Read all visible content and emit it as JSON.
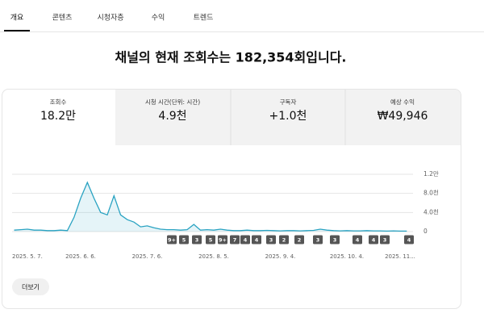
{
  "tabs": [
    "개요",
    "콘텐츠",
    "시청자층",
    "수익",
    "트렌드"
  ],
  "headline": "채널의 현재 조회수는 182,354회입니다.",
  "metrics": [
    {
      "label": "조회수",
      "value": "18.2만"
    },
    {
      "label": "시청 시간(단위: 시간)",
      "value": "4.9천"
    },
    {
      "label": "구독자",
      "value": "+1.0천"
    },
    {
      "label": "예상 수익",
      "value": "₩49,946"
    }
  ],
  "chart_data": {
    "type": "line",
    "color": "#2aa3c2",
    "categories": [
      "2025. 5. 7.",
      null,
      null,
      null,
      null,
      null,
      null,
      null,
      null,
      null,
      "2025. 6. 6.",
      null,
      null,
      null,
      null,
      null,
      null,
      null,
      null,
      null,
      "2025. 7. 6.",
      null,
      null,
      null,
      null,
      null,
      null,
      null,
      null,
      null,
      "2025. 8. 5.",
      null,
      null,
      null,
      null,
      null,
      null,
      null,
      null,
      null,
      "2025. 9. 4.",
      null,
      null,
      null,
      null,
      null,
      null,
      null,
      null,
      null,
      "2025. 10. 4.",
      null,
      null,
      null,
      null,
      null,
      null,
      null,
      "2025. 11...",
      null
    ],
    "values": [
      300,
      400,
      500,
      300,
      300,
      200,
      200,
      300,
      200,
      3000,
      7000,
      10300,
      7000,
      4000,
      3500,
      7500,
      3500,
      2500,
      2000,
      1000,
      1200,
      800,
      500,
      400,
      400,
      300,
      400,
      1500,
      300,
      400,
      300,
      500,
      300,
      200,
      200,
      300,
      200,
      200,
      250,
      200,
      150,
      200,
      200,
      150,
      200,
      250,
      500,
      300,
      200,
      150,
      200,
      150,
      150,
      200,
      150,
      150,
      100,
      150,
      100,
      100
    ],
    "ylim": [
      0,
      12000
    ],
    "yticks": [
      0,
      {
        "value": 4000,
        "label": "4.0천"
      },
      {
        "value": 8000,
        "label": "8.0천"
      },
      {
        "value": 12000,
        "label": "1.2만"
      }
    ],
    "grid": true,
    "publish_markers": [
      "9+",
      "5",
      "3",
      "5",
      "9+",
      "7",
      "4",
      "4",
      "3",
      "2",
      "2",
      "3",
      "3",
      "4",
      "4",
      "3",
      "4"
    ]
  },
  "button": "더보기"
}
